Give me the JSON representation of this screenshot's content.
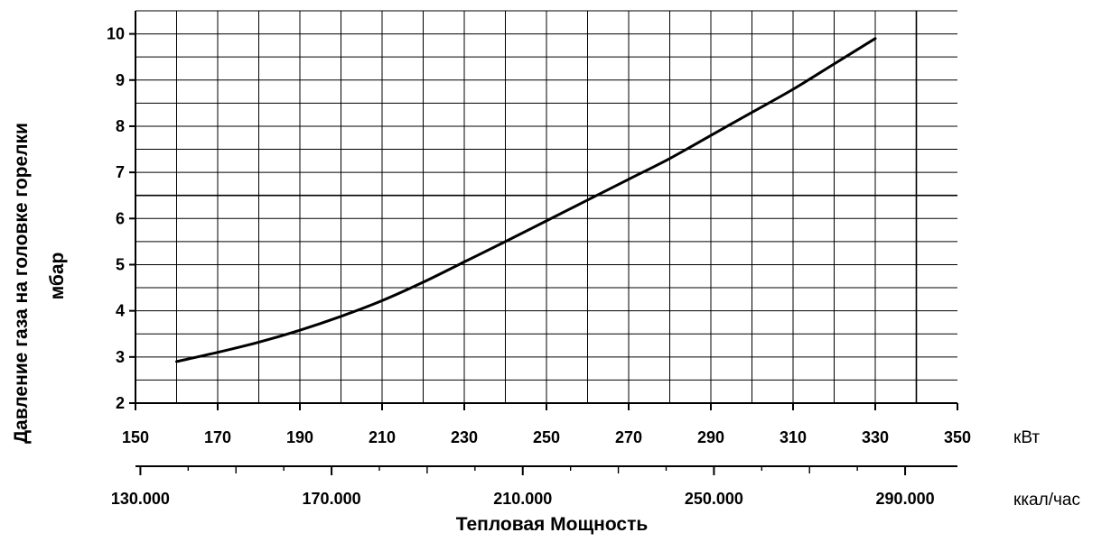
{
  "chart_data": {
    "type": "line",
    "title": "",
    "xlabel": "Тепловая Мощность",
    "ylabel": [
      "Давление газа на головке горелки",
      "мбар"
    ],
    "x_unit_primary": "кВт",
    "x_unit_secondary": "ккал/час",
    "xlim": [
      150,
      350
    ],
    "ylim": [
      2,
      10.5
    ],
    "x_ticks": [
      150,
      170,
      190,
      210,
      230,
      250,
      270,
      290,
      310,
      330,
      350
    ],
    "x_tick_labels": [
      "150",
      "170",
      "190",
      "210",
      "230",
      "250",
      "270",
      "290",
      "310",
      "330",
      "350"
    ],
    "y_ticks": [
      2,
      3,
      4,
      5,
      6,
      7,
      8,
      9,
      10
    ],
    "y_tick_labels": [
      "2",
      "3",
      "4",
      "5",
      "6",
      "7",
      "8",
      "9",
      "10"
    ],
    "secondary_x_ticks": [
      "130.000",
      "170.000",
      "210.000",
      "250.000",
      "290.000"
    ],
    "secondary_x_tick_values_kcal": [
      130000,
      170000,
      210000,
      250000,
      290000
    ],
    "reference_lines": {
      "y": 6.5,
      "x": 340
    },
    "grid": true,
    "series": [
      {
        "x": [
          160,
          170,
          180,
          190,
          200,
          210,
          220,
          230,
          240,
          250,
          260,
          270,
          280,
          290,
          300,
          310,
          320,
          330
        ],
        "y": [
          2.9,
          3.1,
          3.32,
          3.58,
          3.88,
          4.22,
          4.62,
          5.06,
          5.5,
          5.95,
          6.4,
          6.85,
          7.3,
          7.8,
          8.3,
          8.8,
          9.35,
          9.9
        ]
      }
    ]
  }
}
